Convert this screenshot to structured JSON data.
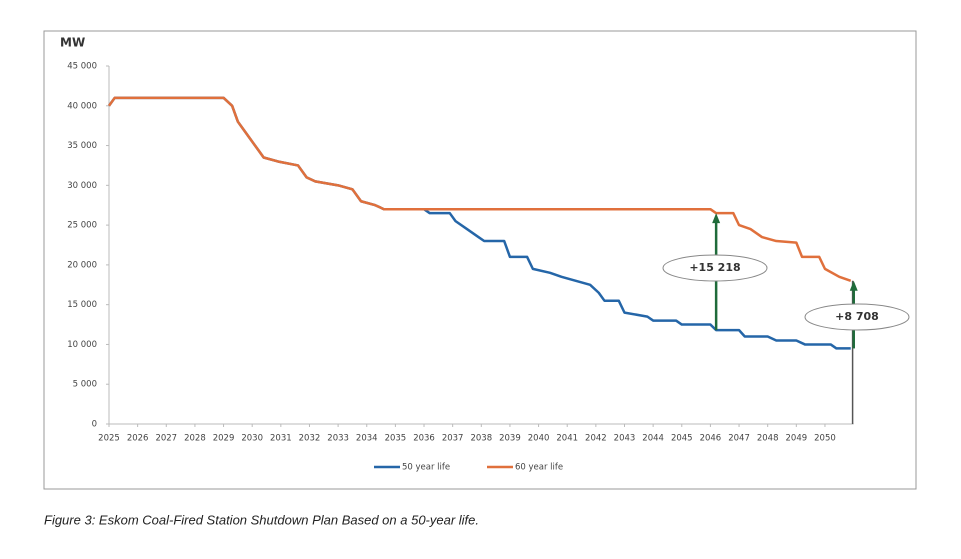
{
  "chart_data": {
    "type": "line",
    "y_axis_label": "MW",
    "caption": "Figure 3: Eskom Coal-Fired Station Shutdown Plan Based on a 50-year life.",
    "xlim": [
      2025,
      2051
    ],
    "xticks": [
      2025,
      2026,
      2027,
      2028,
      2029,
      2030,
      2031,
      2032,
      2033,
      2034,
      2035,
      2036,
      2037,
      2038,
      2039,
      2040,
      2041,
      2042,
      2043,
      2044,
      2045,
      2046,
      2047,
      2048,
      2049,
      2050
    ],
    "ylim": [
      0,
      45000
    ],
    "yticks": [
      0,
      {
        "value": 5000,
        "label": "5 000"
      },
      {
        "value": 10000,
        "label": "10 000"
      },
      {
        "value": 15000,
        "label": "15 000"
      },
      {
        "value": 20000,
        "label": "20 000"
      },
      {
        "value": 25000,
        "label": "25 000"
      },
      {
        "value": 30000,
        "label": "30 000"
      },
      {
        "value": 35000,
        "label": "35 000"
      },
      {
        "value": 40000,
        "label": "40 000"
      },
      {
        "value": 45000,
        "label": "45 000"
      }
    ],
    "grid": false,
    "series": [
      {
        "name": "50 year life",
        "color": "#2566a8",
        "x": [
          2025,
          2025.2,
          2029.0,
          2029.3,
          2029.5,
          2029.8,
          2030.2,
          2030.4,
          2030.9,
          2031.6,
          2031.9,
          2032.2,
          2033.0,
          2033.5,
          2033.8,
          2034.3,
          2034.6,
          2036.0,
          2036.2,
          2036.9,
          2037.1,
          2037.5,
          2037.9,
          2038.1,
          2038.8,
          2039.0,
          2039.6,
          2039.8,
          2040.4,
          2040.8,
          2041.3,
          2041.8,
          2042.1,
          2042.3,
          2042.8,
          2043.0,
          2043.8,
          2044.0,
          2044.8,
          2045.0,
          2046.0,
          2046.2,
          2047.0,
          2047.2,
          2048.0,
          2048.3,
          2049.0,
          2049.3,
          2050.2,
          2050.4,
          2050.9
        ],
        "values": [
          40000,
          41000,
          41000,
          40000,
          38000,
          36500,
          34500,
          33500,
          33000,
          32500,
          31000,
          30500,
          30000,
          29500,
          28000,
          27500,
          27000,
          27000,
          26500,
          26500,
          25500,
          24500,
          23500,
          23000,
          23000,
          21000,
          21000,
          19500,
          19000,
          18500,
          18000,
          17500,
          16500,
          15500,
          15500,
          14000,
          13500,
          13000,
          13000,
          12500,
          12500,
          11800,
          11800,
          11000,
          11000,
          10500,
          10500,
          10000,
          10000,
          9500,
          9500
        ]
      },
      {
        "name": "60 year life",
        "color": "#e0703c",
        "x": [
          2025,
          2025.2,
          2029.0,
          2029.3,
          2029.5,
          2029.8,
          2030.2,
          2030.4,
          2030.9,
          2031.6,
          2031.9,
          2032.2,
          2033.0,
          2033.5,
          2033.8,
          2034.3,
          2034.6,
          2046.0,
          2046.2,
          2046.8,
          2047.0,
          2047.4,
          2047.8,
          2048.3,
          2049.0,
          2049.2,
          2049.8,
          2050.0,
          2050.5,
          2050.9
        ],
        "values": [
          40000,
          41000,
          41000,
          40000,
          38000,
          36500,
          34500,
          33500,
          33000,
          32500,
          31000,
          30500,
          30000,
          29500,
          28000,
          27500,
          27000,
          27000,
          26500,
          26500,
          25000,
          24500,
          23500,
          23000,
          22800,
          21000,
          21000,
          19500,
          18500,
          18000
        ]
      }
    ],
    "annotations": [
      {
        "text": "+15 218",
        "x": 2046.2
      },
      {
        "text": "+8 708",
        "x": 2050.9
      }
    ]
  }
}
